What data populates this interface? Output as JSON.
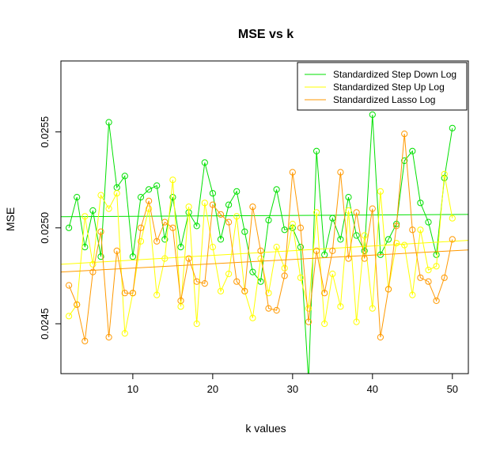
{
  "chart_data": {
    "type": "line",
    "title": "MSE vs k",
    "xlabel": "k values",
    "ylabel": "MSE",
    "xlim": [
      1,
      52
    ],
    "ylim": [
      0.02424,
      0.02587
    ],
    "xticks": [
      10,
      20,
      30,
      40,
      50
    ],
    "xtick_labels": [
      "10",
      "20",
      "30",
      "40",
      "50"
    ],
    "yticks": [
      0.0245,
      0.025,
      0.0255
    ],
    "ytick_labels": [
      "0.0245",
      "0.0250",
      "0.0255"
    ],
    "legend_position": "top-right",
    "grid": false,
    "x": [
      2,
      3,
      4,
      5,
      6,
      7,
      8,
      9,
      10,
      11,
      12,
      13,
      14,
      15,
      16,
      17,
      18,
      19,
      20,
      21,
      22,
      23,
      24,
      25,
      26,
      27,
      28,
      29,
      30,
      31,
      32,
      33,
      34,
      35,
      36,
      37,
      38,
      39,
      40,
      41,
      42,
      43,
      44,
      45,
      46,
      47,
      48,
      49,
      50
    ],
    "series": [
      {
        "name": "Standardized Step Down Log",
        "color": "#00e000",
        "values": [
          0.025,
          0.02516,
          0.0249,
          0.02509,
          0.02485,
          0.02555,
          0.02521,
          0.02527,
          0.02485,
          0.02516,
          0.0252,
          0.02522,
          0.02494,
          0.02516,
          0.0249,
          0.02508,
          0.02501,
          0.02534,
          0.02518,
          0.02494,
          0.02512,
          0.02519,
          0.02498,
          0.02477,
          0.02472,
          0.02504,
          0.0252,
          0.02499,
          0.025,
          0.0249,
          0.0242,
          0.0254,
          0.02486,
          0.02505,
          0.02494,
          0.02516,
          0.02496,
          0.02488,
          0.02559,
          0.02486,
          0.02494,
          0.02502,
          0.02535,
          0.0254,
          0.02513,
          0.02503,
          0.02486,
          0.02526,
          0.02552
        ],
        "trend": [
          0.025058,
          0.02507
        ]
      },
      {
        "name": "Standardized Step Up Log",
        "color": "#ffff00",
        "values": [
          0.02454,
          0.0246,
          0.02506,
          0.02481,
          0.02517,
          0.0251,
          0.02518,
          0.02445,
          0.02466,
          0.02493,
          0.0251,
          0.02465,
          0.02484,
          0.02525,
          0.02459,
          0.02511,
          0.0245,
          0.02513,
          0.0249,
          0.02467,
          0.02476,
          0.02506,
          0.02467,
          0.02453,
          0.02484,
          0.02466,
          0.0249,
          0.02479,
          0.02502,
          0.02474,
          0.02458,
          0.02508,
          0.0245,
          0.02476,
          0.02459,
          0.02509,
          0.02451,
          0.02496,
          0.02458,
          0.02519,
          0.02468,
          0.02492,
          0.02491,
          0.02465,
          0.02499,
          0.02478,
          0.0248,
          0.02528,
          0.02505
        ],
        "trend": [
          0.02481,
          0.024935
        ]
      },
      {
        "name": "Standardized Lasso Log",
        "color": "#ff9900",
        "values": [
          0.0247,
          0.0246,
          0.02441,
          0.02477,
          0.02498,
          0.02443,
          0.02488,
          0.02466,
          0.02466,
          0.025,
          0.02514,
          0.02493,
          0.02503,
          0.025,
          0.02462,
          0.02484,
          0.02472,
          0.02471,
          0.02512,
          0.02507,
          0.02503,
          0.02472,
          0.02467,
          0.02511,
          0.02488,
          0.02458,
          0.02457,
          0.02475,
          0.02529,
          0.025,
          0.02451,
          0.02488,
          0.02466,
          0.02488,
          0.02529,
          0.02484,
          0.02508,
          0.02484,
          0.0251,
          0.02443,
          0.02468,
          0.02501,
          0.02549,
          0.02499,
          0.02474,
          0.02472,
          0.02462,
          0.02474,
          0.02494
        ],
        "trend": [
          0.02477,
          0.024885
        ]
      }
    ]
  }
}
